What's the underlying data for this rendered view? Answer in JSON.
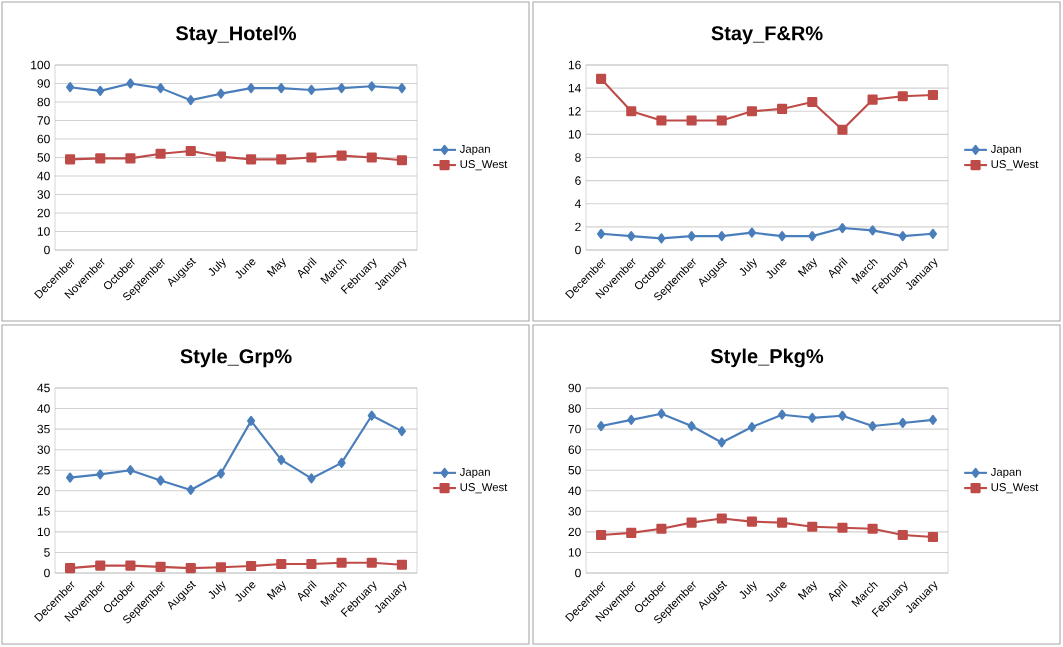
{
  "chart_data": [
    {
      "type": "line",
      "title": "Stay_Hotel%",
      "categories": [
        "December",
        "November",
        "October",
        "September",
        "August",
        "July",
        "June",
        "May",
        "April",
        "March",
        "February",
        "January"
      ],
      "ylim": [
        0,
        100
      ],
      "yticks": [
        0,
        10,
        20,
        30,
        40,
        50,
        60,
        70,
        80,
        90,
        100
      ],
      "grid": "y",
      "legend": "right",
      "series": [
        {
          "name": "Japan",
          "color": "#4a7ebb",
          "marker": "diamond",
          "values": [
            88,
            86,
            90,
            87.5,
            81,
            84.5,
            87.5,
            87.5,
            86.5,
            87.5,
            88.5,
            87.5
          ]
        },
        {
          "name": "US_West",
          "color": "#be4b48",
          "marker": "square",
          "values": [
            49,
            49.5,
            49.5,
            52,
            53.5,
            50.5,
            49,
            49,
            50,
            51,
            50,
            48.5
          ]
        }
      ]
    },
    {
      "type": "line",
      "title": "Stay_F&R%",
      "categories": [
        "December",
        "November",
        "October",
        "September",
        "August",
        "July",
        "June",
        "May",
        "April",
        "March",
        "February",
        "January"
      ],
      "ylim": [
        0,
        16
      ],
      "yticks": [
        0,
        2,
        4,
        6,
        8,
        10,
        12,
        14,
        16
      ],
      "grid": "y",
      "legend": "right",
      "series": [
        {
          "name": "Japan",
          "color": "#4a7ebb",
          "marker": "diamond",
          "values": [
            1.4,
            1.2,
            1.0,
            1.2,
            1.2,
            1.5,
            1.2,
            1.2,
            1.9,
            1.7,
            1.2,
            1.4
          ]
        },
        {
          "name": "US_West",
          "color": "#be4b48",
          "marker": "square",
          "values": [
            14.8,
            12,
            11.2,
            11.2,
            11.2,
            12,
            12.2,
            12.8,
            10.4,
            13,
            13.3,
            13.4
          ]
        }
      ]
    },
    {
      "type": "line",
      "title": "Style_Grp%",
      "categories": [
        "December",
        "November",
        "October",
        "September",
        "August",
        "July",
        "June",
        "May",
        "April",
        "March",
        "February",
        "January"
      ],
      "ylim": [
        0,
        45
      ],
      "yticks": [
        0,
        5,
        10,
        15,
        20,
        25,
        30,
        35,
        40,
        45
      ],
      "grid": "y",
      "legend": "right",
      "series": [
        {
          "name": "Japan",
          "color": "#4a7ebb",
          "marker": "diamond",
          "values": [
            23.2,
            24,
            25,
            22.5,
            20.2,
            24.2,
            37,
            27.5,
            23,
            26.8,
            38.3,
            34.5
          ]
        },
        {
          "name": "US_West",
          "color": "#be4b48",
          "marker": "square",
          "values": [
            1.2,
            1.8,
            1.8,
            1.5,
            1.2,
            1.4,
            1.7,
            2.2,
            2.2,
            2.5,
            2.5,
            2.0
          ]
        }
      ]
    },
    {
      "type": "line",
      "title": "Style_Pkg%",
      "categories": [
        "December",
        "November",
        "October",
        "September",
        "August",
        "July",
        "June",
        "May",
        "April",
        "March",
        "February",
        "January"
      ],
      "ylim": [
        0,
        90
      ],
      "yticks": [
        0,
        10,
        20,
        30,
        40,
        50,
        60,
        70,
        80,
        90
      ],
      "grid": "y",
      "legend": "right",
      "series": [
        {
          "name": "Japan",
          "color": "#4a7ebb",
          "marker": "diamond",
          "values": [
            71.5,
            74.5,
            77.5,
            71.5,
            63.5,
            71,
            77,
            75.5,
            76.5,
            71.5,
            73,
            74.5
          ]
        },
        {
          "name": "US_West",
          "color": "#be4b48",
          "marker": "square",
          "values": [
            18.5,
            19.5,
            21.5,
            24.5,
            26.5,
            25,
            24.5,
            22.5,
            22,
            21.5,
            18.5,
            17.5
          ]
        }
      ]
    }
  ]
}
